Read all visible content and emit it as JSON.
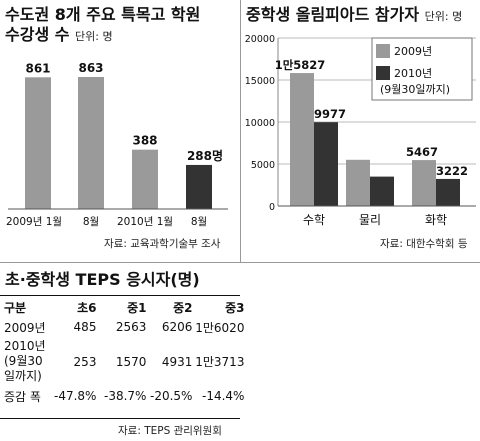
{
  "chart_data": [
    {
      "type": "bar",
      "title_lines": [
        "수도권 8개 주요 특목고 학원",
        "수강생 수"
      ],
      "unit": "단위: 명",
      "categories": [
        "2009년 1월",
        "8월",
        "2010년 1월",
        "8월"
      ],
      "values": [
        861,
        863,
        388,
        288
      ],
      "value_labels": [
        "861",
        "863",
        "388",
        "288명"
      ],
      "colors": [
        "#9a9a9a",
        "#9a9a9a",
        "#9a9a9a",
        "#333333"
      ],
      "ylim": [
        0,
        1000
      ],
      "source": "자료: 교육과학기술부 조사"
    },
    {
      "type": "bar",
      "title": "중학생 올림피아드 참가자",
      "unit": "단위: 명",
      "categories": [
        "수학",
        "물리",
        "화학"
      ],
      "series": [
        {
          "name": "2009년",
          "values": [
            15827,
            5500,
            5467
          ],
          "color": "#9a9a9a",
          "labels": [
            "1만5827",
            "",
            "5467"
          ]
        },
        {
          "name": "2010년 (9월30일까지)",
          "values": [
            9977,
            3500,
            3222
          ],
          "color": "#333333",
          "labels": [
            "9977",
            "",
            "3222"
          ]
        }
      ],
      "legend_lines": [
        [
          "2009년"
        ],
        [
          "2010년",
          "(9월30일까지)"
        ]
      ],
      "yticks": [
        "0",
        "5000",
        "10000",
        "15000",
        "20000"
      ],
      "ytick_values": [
        0,
        5000,
        10000,
        15000,
        20000
      ],
      "ylim": [
        0,
        20000
      ],
      "grid": true,
      "legend_position": "top-right",
      "source": "자료: 대한수학회 등"
    },
    {
      "type": "table",
      "title": "초·중학생 TEPS 응시자(명)",
      "columns": [
        "구분",
        "초6",
        "중1",
        "중2",
        "중3"
      ],
      "rows": [
        {
          "label": [
            "2009년"
          ],
          "cells": [
            "485",
            "2563",
            "6206",
            "1만6020"
          ]
        },
        {
          "label": [
            "2010년",
            "(9월30",
            "일까지)"
          ],
          "cells": [
            "253",
            "1570",
            "4931",
            "1만3713"
          ]
        },
        {
          "label": [
            "증감 폭"
          ],
          "cells": [
            "-47.8%",
            "-38.7%",
            "-20.5%",
            "-14.4%"
          ]
        }
      ],
      "source": "자료: TEPS 관리위원회"
    }
  ]
}
